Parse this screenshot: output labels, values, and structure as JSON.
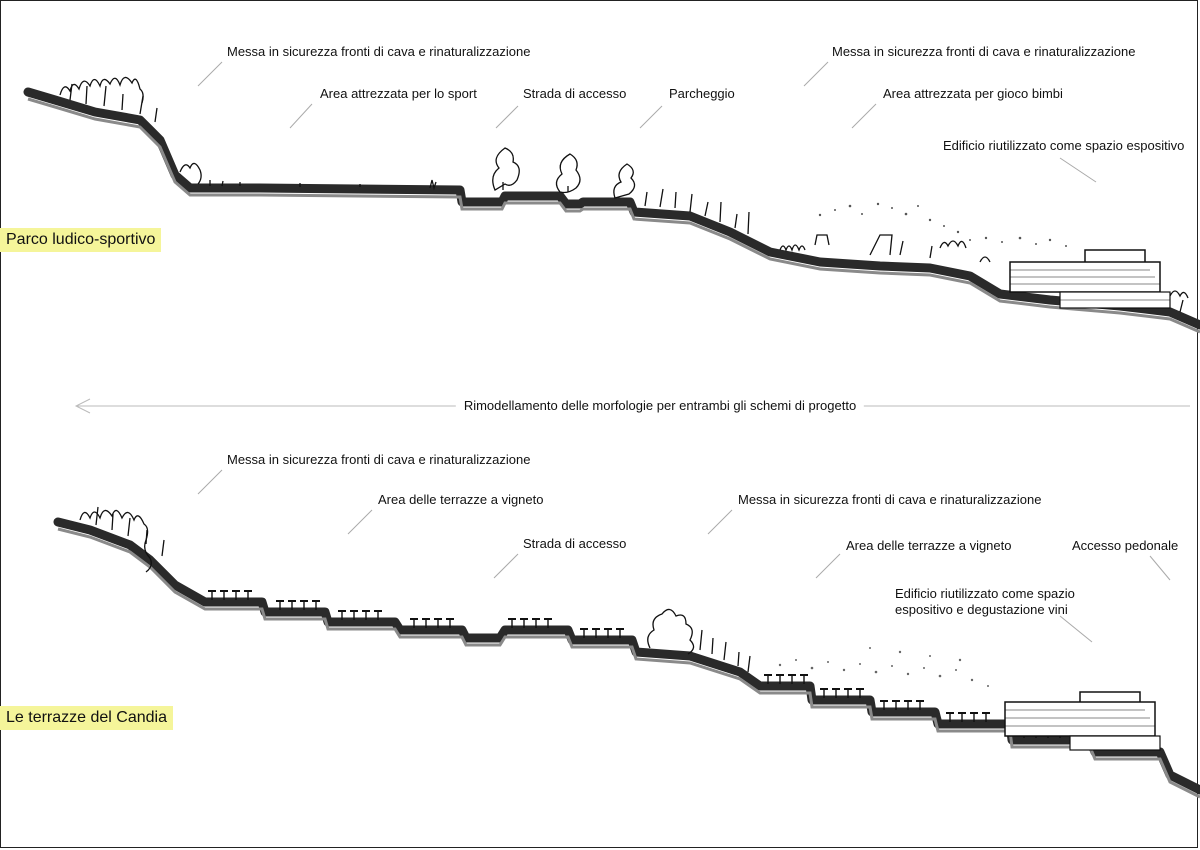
{
  "sections": [
    {
      "title": "Parco ludico-sportivo",
      "labels": [
        "Messa in sicurezza fronti di cava e rinaturalizzazione",
        "Area attrezzata per lo sport",
        "Strada di accesso",
        "Parcheggio",
        "Messa in sicurezza fronti di cava e rinaturalizzazione",
        "Area attrezzata per gioco bimbi",
        "Edificio riutilizzato come spazio espositivo"
      ]
    },
    {
      "title": "Le terrazze del Candia",
      "labels": [
        "Messa in sicurezza fronti di cava e rinaturalizzazione",
        "Area delle terrazze a vigneto",
        "Strada di accesso",
        "Messa in sicurezza fronti di cava e rinaturalizzazione",
        "Area delle terrazze a vigneto",
        "Accesso pedonale",
        "Edificio riutilizzato come spazio",
        "espositivo e degustazione vini"
      ]
    }
  ],
  "middle_note": "Rimodellamento delle morfologie per entrambi gli schemi di progetto"
}
